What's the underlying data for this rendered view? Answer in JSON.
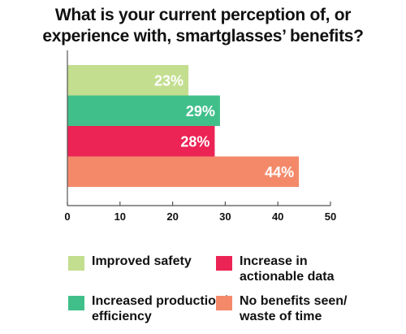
{
  "chart_data": {
    "type": "bar",
    "orientation": "horizontal",
    "title_lines": [
      "What is your current perception of, or",
      "experience with, smartglasses’ benefits?"
    ],
    "categories": [
      "Improved safety",
      "Increased production/ efficiency",
      "Increase in actionable data",
      "No benefits seen/ waste of time"
    ],
    "values": [
      23,
      29,
      28,
      44
    ],
    "value_labels": [
      "23%",
      "29%",
      "28%",
      "44%"
    ],
    "colors": [
      "#c3de8f",
      "#41bf8a",
      "#ec2355",
      "#f4896a"
    ],
    "xlim": [
      0,
      50
    ],
    "xticks": [
      "0",
      "10",
      "20",
      "30",
      "40",
      "50"
    ],
    "grid": false,
    "legend": {
      "placement": "bottom",
      "items": [
        {
          "label": "Improved safety",
          "color": "#c3de8f"
        },
        {
          "label": "Increase in actionable data",
          "color": "#ec2355"
        },
        {
          "label": "Increased production/ efficiency",
          "color": "#41bf8a"
        },
        {
          "label": "No benefits seen/ waste of time",
          "color": "#f4896a"
        }
      ]
    }
  }
}
